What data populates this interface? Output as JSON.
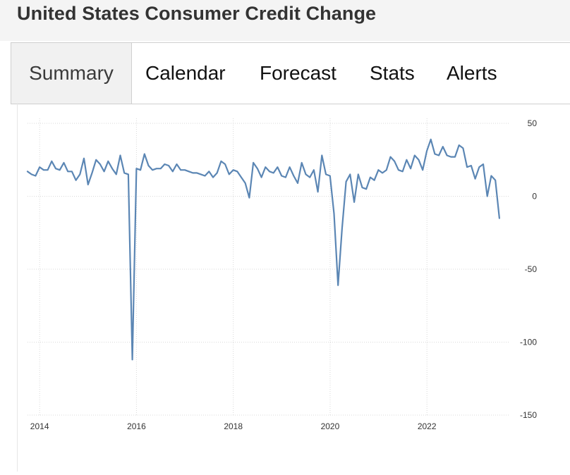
{
  "header": {
    "title": "United States Consumer Credit Change"
  },
  "tabs": [
    {
      "label": "Summary",
      "active": true
    },
    {
      "label": "Calendar",
      "active": false
    },
    {
      "label": "Forecast",
      "active": false
    },
    {
      "label": "Stats",
      "active": false
    },
    {
      "label": "Alerts",
      "active": false
    }
  ],
  "colors": {
    "line": "#5b86b4",
    "grid": "#d9d9d9",
    "tick_text": "#333333"
  },
  "chart_data": {
    "type": "line",
    "title": "",
    "xlabel": "",
    "ylabel": "",
    "grid": true,
    "x_start": 2013.75,
    "x_step_years": 0.0833,
    "xlim": [
      2013.75,
      2023.6
    ],
    "ylim": [
      -150,
      50
    ],
    "x_ticks": [
      {
        "value": 2014,
        "label": "2014"
      },
      {
        "value": 2016,
        "label": "2016"
      },
      {
        "value": 2018,
        "label": "2018"
      },
      {
        "value": 2020,
        "label": "2020"
      },
      {
        "value": 2022,
        "label": "2022"
      }
    ],
    "y_ticks": [
      {
        "value": 50,
        "label": "50"
      },
      {
        "value": 0,
        "label": "0"
      },
      {
        "value": -50,
        "label": "-50"
      },
      {
        "value": -100,
        "label": "-100"
      },
      {
        "value": -150,
        "label": "-150"
      }
    ],
    "series": [
      {
        "values": [
          17,
          15,
          14,
          20,
          18,
          18,
          24,
          19,
          18,
          23,
          17,
          17,
          11,
          15,
          26,
          8,
          16,
          25,
          22,
          17,
          24,
          19,
          15,
          28,
          16,
          15,
          -112,
          19,
          18,
          29,
          21,
          18,
          19,
          19,
          22,
          21,
          17,
          22,
          18,
          18,
          17,
          16,
          16,
          15,
          14,
          17,
          13,
          16,
          24,
          22,
          15,
          18,
          17,
          13,
          9,
          -1,
          23,
          19,
          13,
          20,
          17,
          16,
          20,
          14,
          13,
          20,
          14,
          9,
          23,
          15,
          13,
          18,
          3,
          28,
          15,
          14,
          -12,
          -61,
          -22,
          10,
          15,
          -4,
          15,
          6,
          5,
          13,
          11,
          18,
          16,
          18,
          27,
          24,
          18,
          17,
          25,
          19,
          28,
          25,
          18,
          31,
          39,
          29,
          28,
          34,
          28,
          27,
          27,
          35,
          33,
          20,
          21,
          12,
          20,
          22,
          0,
          14,
          11,
          -15
        ]
      }
    ]
  }
}
